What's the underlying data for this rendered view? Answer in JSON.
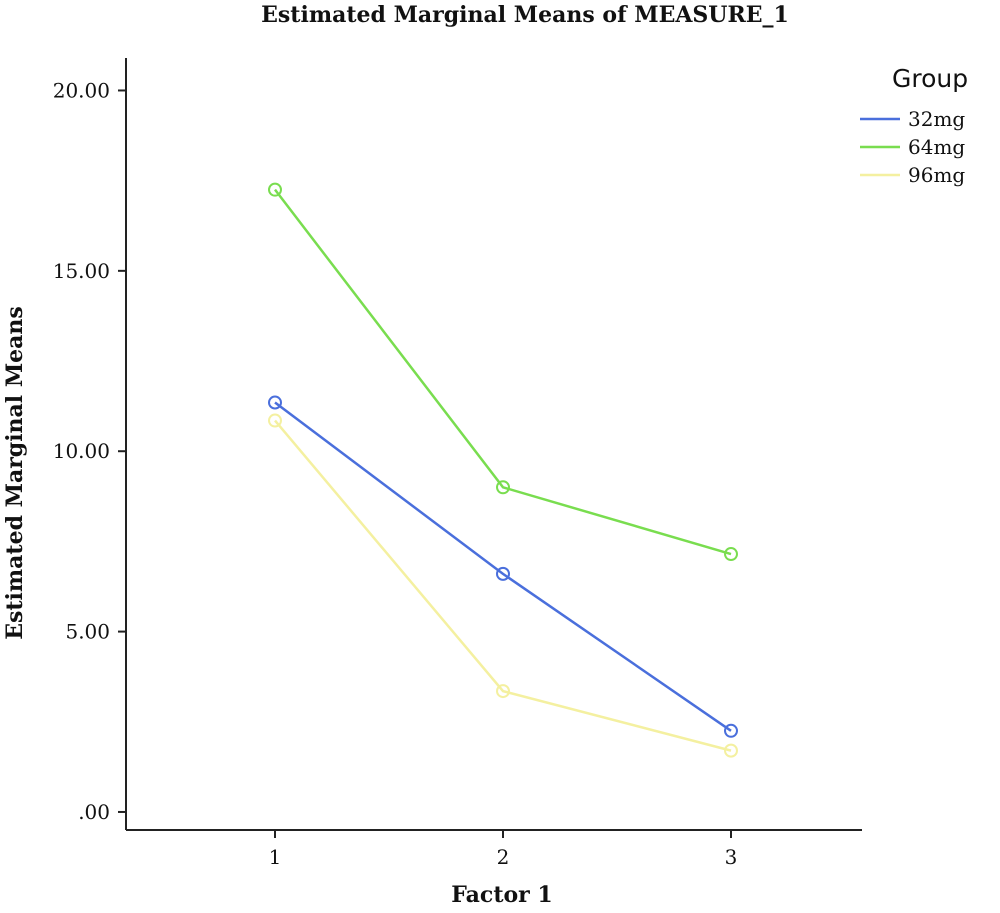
{
  "chart_data": {
    "type": "line",
    "title": "Estimated Marginal Means of MEASURE_1",
    "xlabel": "Factor 1",
    "ylabel": "Estimated Marginal Means",
    "categories": [
      "1",
      "2",
      "3"
    ],
    "ylim": [
      -0.5,
      20.9
    ],
    "yticks": [
      ".00",
      "5.00",
      "10.00",
      "15.00",
      "20.00"
    ],
    "ytick_values": [
      0,
      5,
      10,
      15,
      20
    ],
    "grid": false,
    "legend": {
      "title": "Group",
      "position": "top-right"
    },
    "series": [
      {
        "name": "32mg",
        "color": "#4a6fdc",
        "values": [
          11.35,
          6.6,
          2.25
        ]
      },
      {
        "name": "64mg",
        "color": "#79dd4f",
        "values": [
          17.25,
          9.0,
          7.15
        ]
      },
      {
        "name": "96mg",
        "color": "#f4f0a0",
        "values": [
          10.85,
          3.35,
          1.7
        ]
      }
    ]
  }
}
